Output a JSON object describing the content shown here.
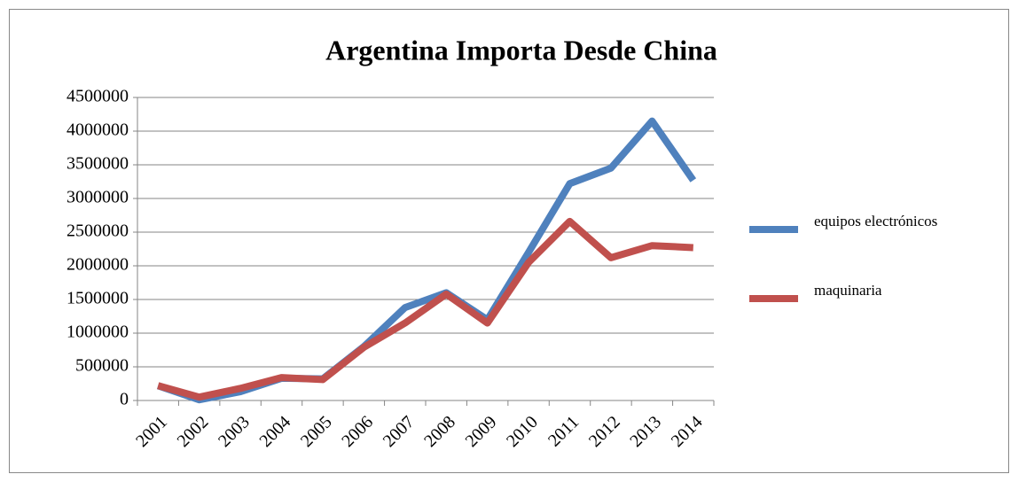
{
  "chart_data": {
    "type": "line",
    "title": "Argentina Importa Desde China",
    "categories": [
      "2001",
      "2002",
      "2003",
      "2004",
      "2005",
      "2006",
      "2007",
      "2008",
      "2009",
      "2010",
      "2011",
      "2012",
      "2013",
      "2014"
    ],
    "series": [
      {
        "name": "equipos electrónicos",
        "color": "#4f81bd",
        "values": [
          220000,
          10000,
          130000,
          330000,
          320000,
          800000,
          1380000,
          1600000,
          1200000,
          2200000,
          3220000,
          3450000,
          4150000,
          3270000
        ]
      },
      {
        "name": "maquinaria",
        "color": "#c0504d",
        "values": [
          220000,
          50000,
          180000,
          340000,
          310000,
          790000,
          1150000,
          1580000,
          1150000,
          2050000,
          2660000,
          2120000,
          2300000,
          2270000
        ]
      }
    ],
    "ylim": [
      0,
      4500000
    ],
    "yticks": [
      0,
      500000,
      1000000,
      1500000,
      2000000,
      2500000,
      3000000,
      3500000,
      4000000,
      4500000
    ],
    "grid": true,
    "legend": "right"
  }
}
